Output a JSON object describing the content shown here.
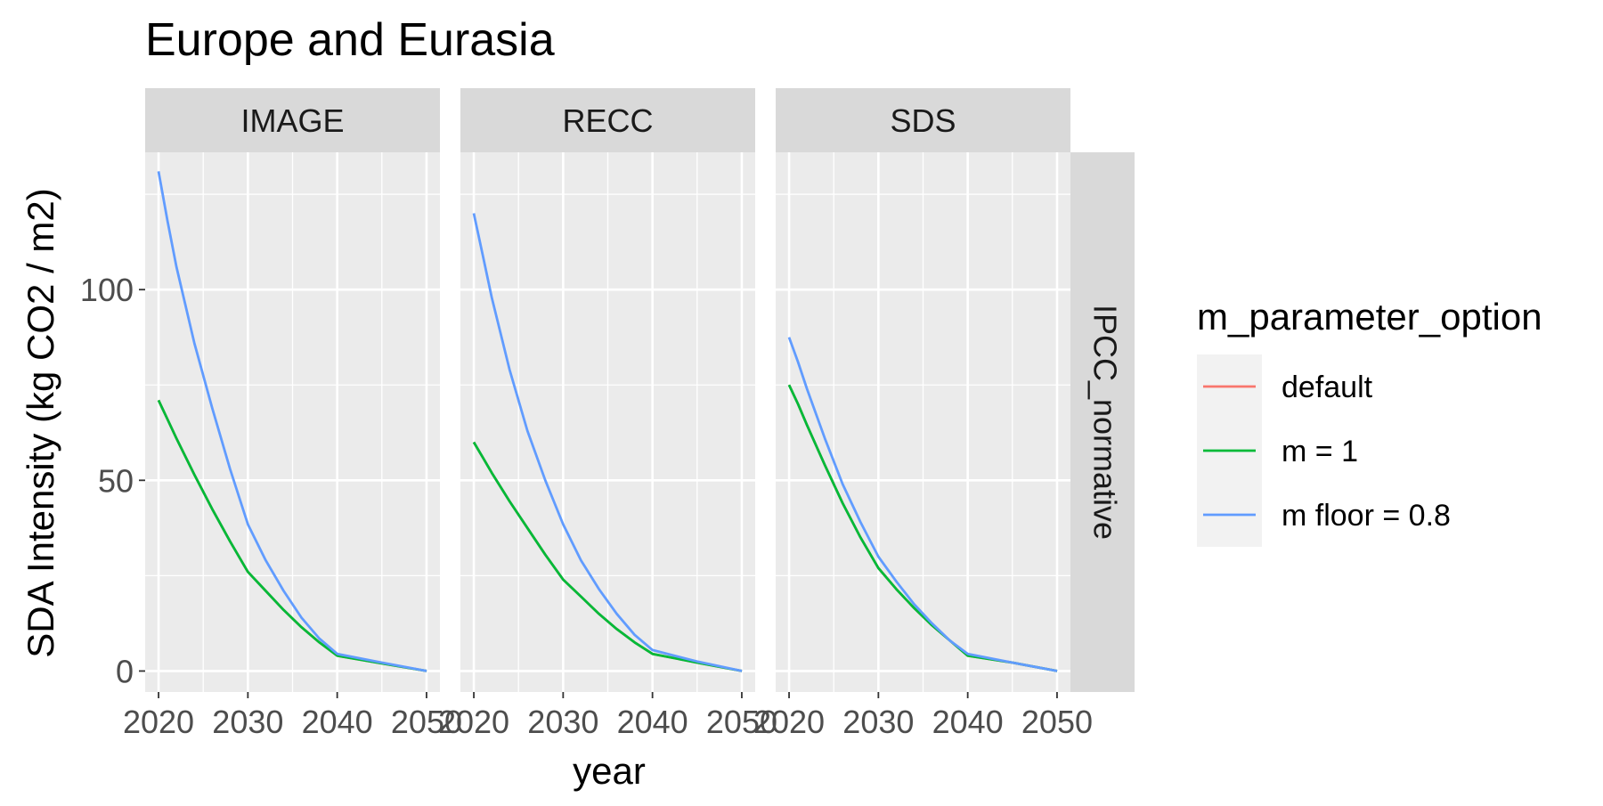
{
  "chart_data": {
    "type": "line",
    "title": "Europe and Eurasia",
    "xlabel": "year",
    "ylabel": "SDA Intensity (kg CO2 / m2)",
    "xlim": [
      2018.5,
      2051.5
    ],
    "ylim": [
      -5.5,
      136
    ],
    "x_ticks": [
      2020,
      2030,
      2040,
      2050
    ],
    "x_tick_labels": [
      "2020",
      "2030",
      "2040",
      "2050"
    ],
    "y_ticks": [
      0,
      50,
      100
    ],
    "y_tick_labels": [
      "0",
      "50",
      "100"
    ],
    "y_minor_ticks": [
      25,
      75,
      125
    ],
    "x_minor_ticks": [
      2025,
      2035,
      2045
    ],
    "grid": true,
    "row_strip": "IPCC_normative",
    "legend": {
      "title": "m_parameter_option",
      "position": "right",
      "entries": [
        {
          "label": "default",
          "color": "#F8766D"
        },
        {
          "label": "m = 1",
          "color": "#00BA38"
        },
        {
          "label": "m floor = 0.8",
          "color": "#619CFF"
        }
      ]
    },
    "panels": [
      {
        "strip": "IMAGE",
        "x": [
          2020,
          2021,
          2022,
          2024,
          2026,
          2028,
          2030,
          2032,
          2034,
          2036,
          2038,
          2040,
          2045,
          2050
        ],
        "series": [
          {
            "name": "default",
            "color": "#F8766D",
            "values": [
              71,
              66,
              61,
              51.5,
              42.5,
              34,
              26,
              21,
              16,
              11.5,
              7.5,
              4,
              2,
              0
            ]
          },
          {
            "name": "m = 1",
            "color": "#00BA38",
            "values": [
              71,
              66,
              61,
              51.5,
              42.5,
              34,
              26,
              21,
              16,
              11.5,
              7.5,
              4,
              2,
              0
            ]
          },
          {
            "name": "m floor = 0.8",
            "color": "#619CFF",
            "values": [
              131,
              118,
              106,
              86,
              69,
              53,
              38.5,
              29,
              21,
              14,
              8.5,
              4.5,
              2.2,
              0
            ]
          }
        ]
      },
      {
        "strip": "RECC",
        "x": [
          2020,
          2021,
          2022,
          2024,
          2026,
          2028,
          2030,
          2032,
          2034,
          2036,
          2038,
          2040,
          2045,
          2050
        ],
        "series": [
          {
            "name": "default",
            "color": "#F8766D",
            "values": [
              60,
              56,
              52,
              44.5,
              37.5,
              30.5,
              24,
              19.5,
              15,
              11,
              7.5,
              4.5,
              2.2,
              0
            ]
          },
          {
            "name": "m = 1",
            "color": "#00BA38",
            "values": [
              60,
              56,
              52,
              44.5,
              37.5,
              30.5,
              24,
              19.5,
              15,
              11,
              7.5,
              4.5,
              2.2,
              0
            ]
          },
          {
            "name": "m floor = 0.8",
            "color": "#619CFF",
            "values": [
              120,
              109,
              98,
              79,
              63,
              50,
              38.5,
              29,
              21.5,
              15,
              9.5,
              5.5,
              2.5,
              0
            ]
          }
        ]
      },
      {
        "strip": "SDS",
        "x": [
          2020,
          2021,
          2022,
          2024,
          2026,
          2028,
          2030,
          2032,
          2034,
          2036,
          2038,
          2040,
          2045,
          2050
        ],
        "series": [
          {
            "name": "default",
            "color": "#F8766D",
            "values": [
              75,
              70,
              64.5,
              54,
              44,
              35,
              27,
              21.5,
              16.5,
              12,
              8,
              4,
              2.2,
              0
            ]
          },
          {
            "name": "m = 1",
            "color": "#00BA38",
            "values": [
              75,
              70,
              64.5,
              54,
              44,
              35,
              27,
              21.5,
              16.5,
              12,
              8,
              4,
              2.2,
              0
            ]
          },
          {
            "name": "m floor = 0.8",
            "color": "#619CFF",
            "values": [
              87.5,
              81,
              74,
              61,
              49,
              39,
              30,
              23.5,
              17.5,
              12.5,
              8,
              4.5,
              2.2,
              0
            ]
          }
        ]
      }
    ]
  }
}
